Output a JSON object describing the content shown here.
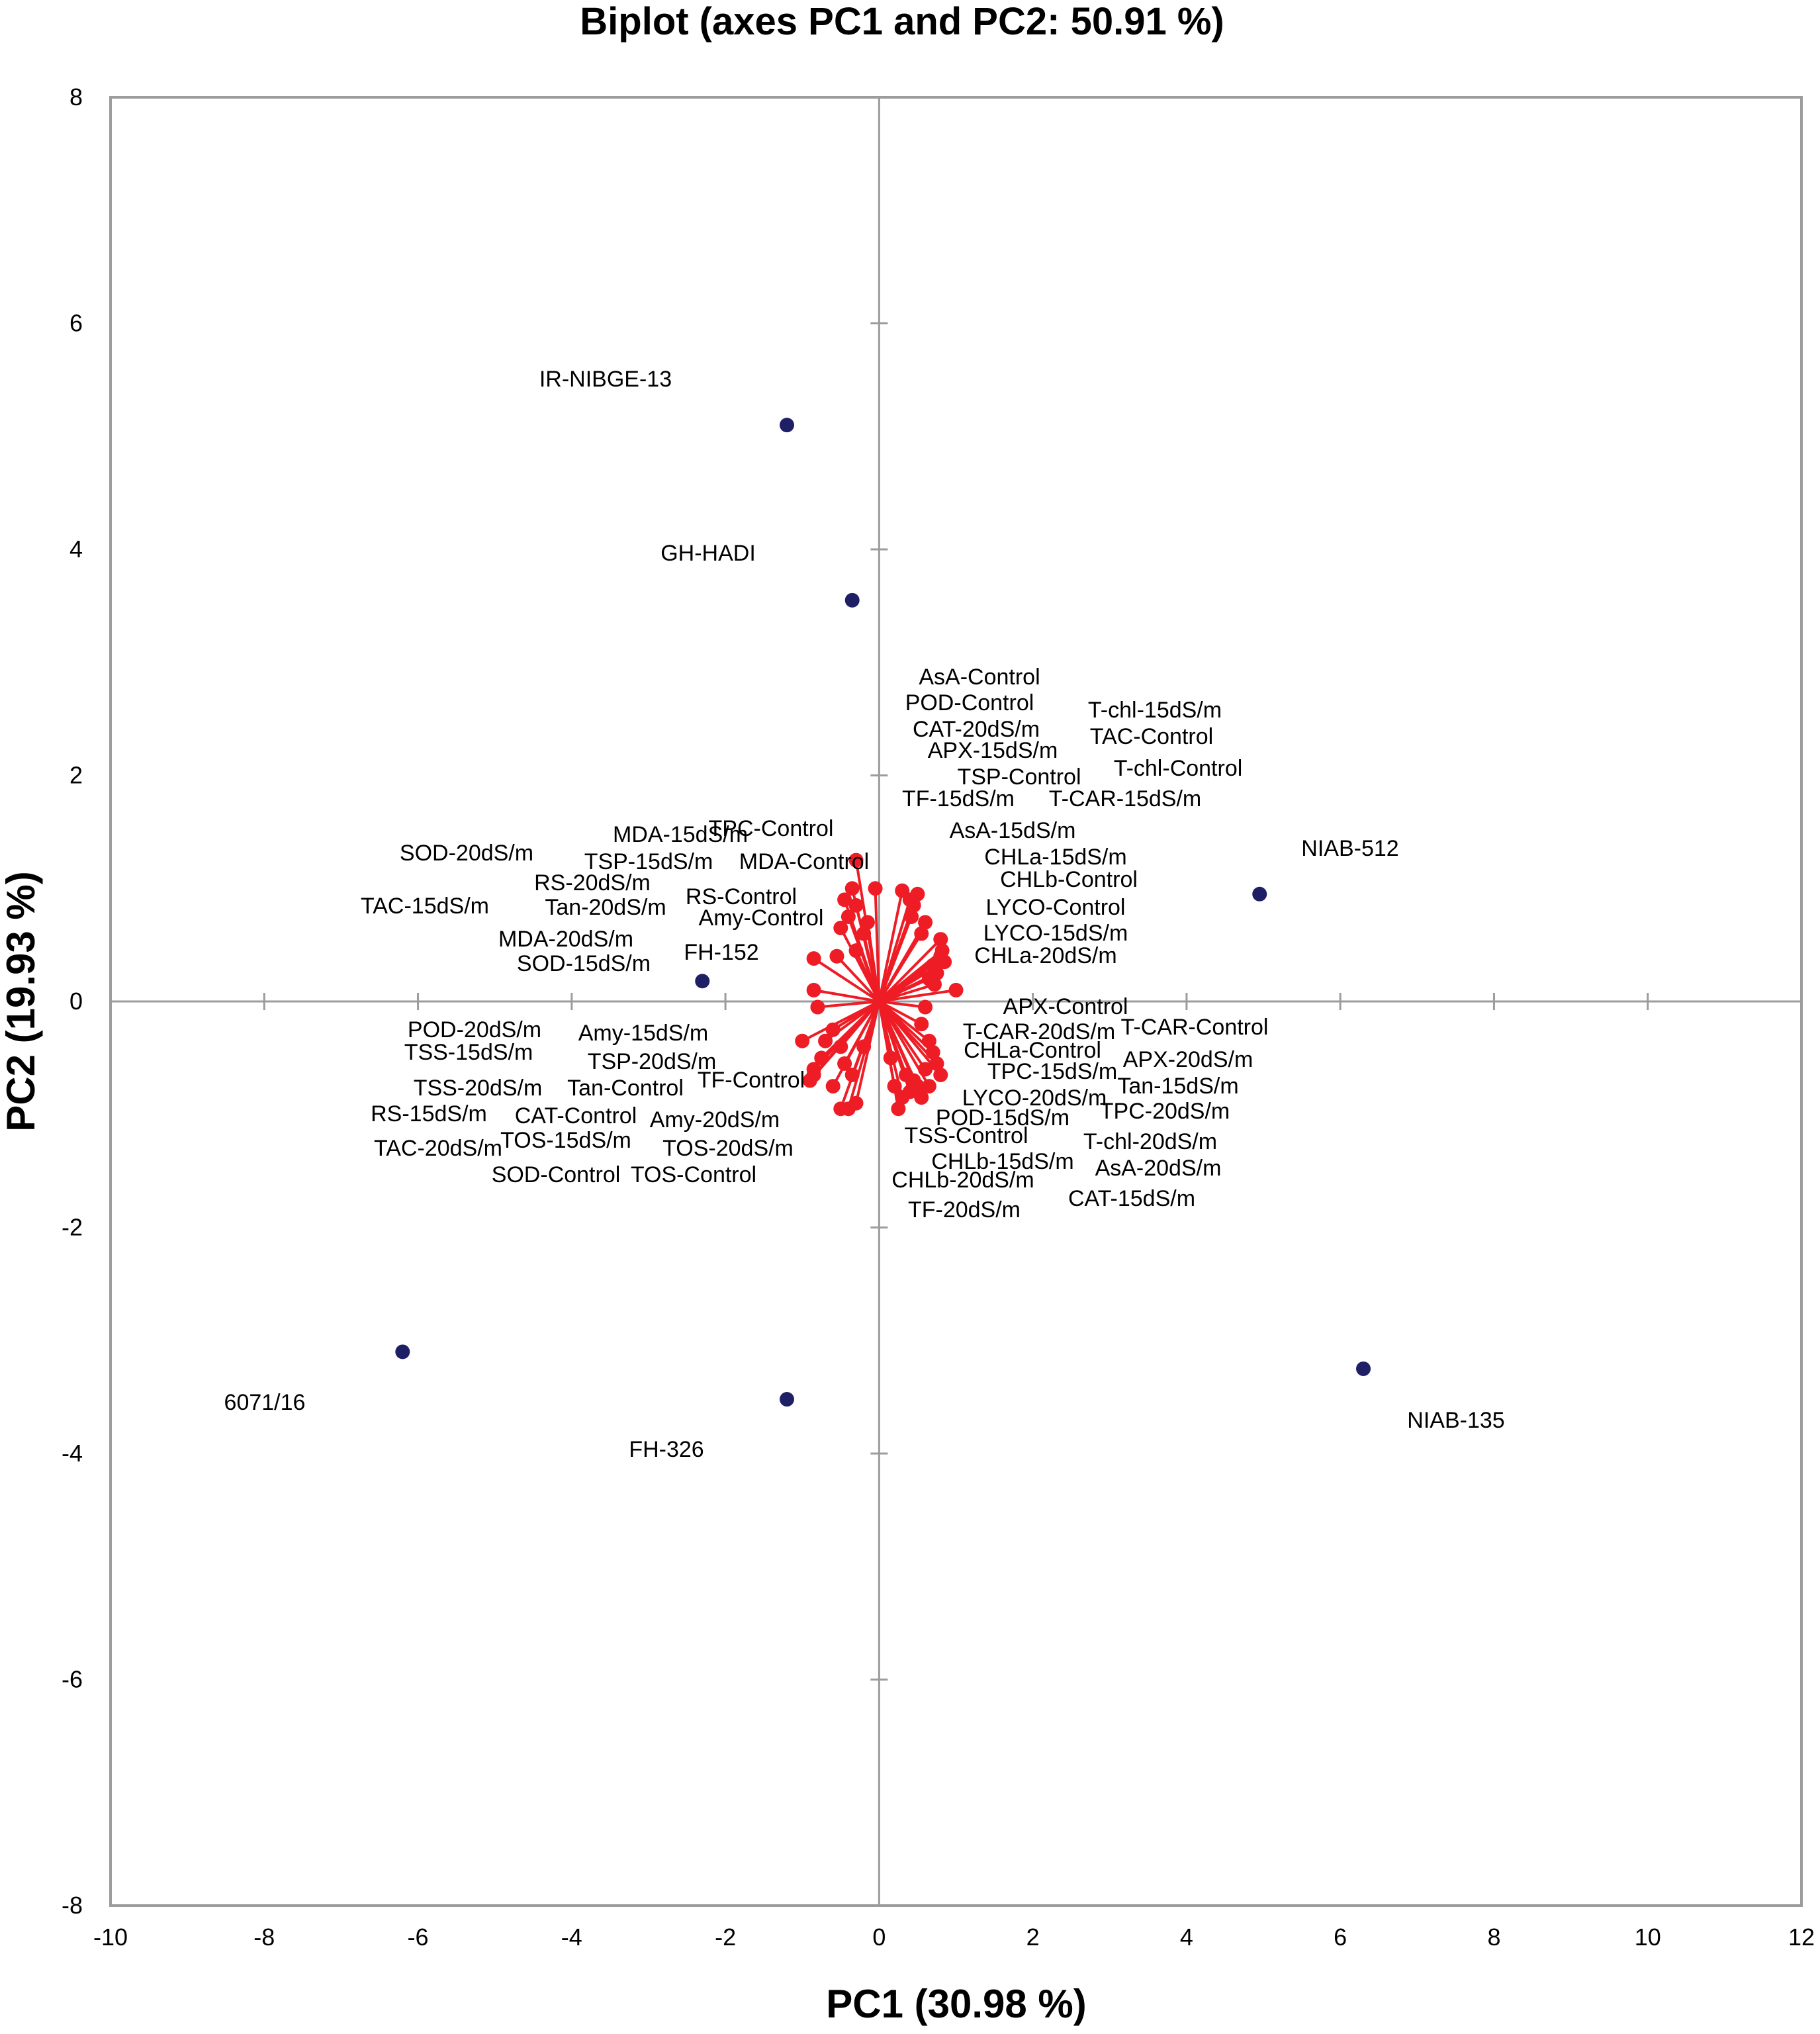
{
  "chart_data": {
    "type": "scatter",
    "title": "Biplot (axes PC1 and PC2: 50.91 %)",
    "xlabel": "PC1 (30.98 %)",
    "ylabel": "PC2 (19.93 %)",
    "xlim": [
      -10,
      12
    ],
    "ylim": [
      -8,
      8
    ],
    "xticks": [
      -10,
      -8,
      -6,
      -4,
      -2,
      0,
      2,
      4,
      6,
      8,
      10,
      12
    ],
    "yticks": [
      -8,
      -6,
      -4,
      -2,
      0,
      2,
      4,
      6,
      8
    ],
    "grid": false,
    "colors": {
      "observations": "#1f1f66",
      "variables": "#ee1c25",
      "axes": "#9c9c9c",
      "frame": "#9c9c9c"
    },
    "observations": [
      {
        "label": "IR-NIBGE-13",
        "x": -1.2,
        "y": 5.1
      },
      {
        "label": "GH-HADI",
        "x": -0.35,
        "y": 3.55
      },
      {
        "label": "NIAB-512",
        "x": 4.95,
        "y": 0.95
      },
      {
        "label": "FH-152",
        "x": -2.3,
        "y": 0.18
      },
      {
        "label": "6071/16",
        "x": -6.2,
        "y": -3.1
      },
      {
        "label": "FH-326",
        "x": -1.2,
        "y": -3.52
      },
      {
        "label": "NIAB-135",
        "x": 6.3,
        "y": -3.25
      }
    ],
    "variables": [
      {
        "label": "AsA-Control",
        "x": 0.5,
        "y": 0.95
      },
      {
        "label": "POD-Control",
        "x": 0.3,
        "y": 0.98
      },
      {
        "label": "CAT-20dS/m",
        "x": 0.4,
        "y": 0.9
      },
      {
        "label": "APX-15dS/m",
        "x": 0.45,
        "y": 0.85
      },
      {
        "label": "T-chl-15dS/m",
        "x": 0.8,
        "y": 0.55
      },
      {
        "label": "TAC-Control",
        "x": 0.82,
        "y": 0.45
      },
      {
        "label": "TSP-Control",
        "x": 0.6,
        "y": 0.7
      },
      {
        "label": "T-chl-Control",
        "x": 0.85,
        "y": 0.35
      },
      {
        "label": "TF-15dS/m",
        "x": 0.42,
        "y": 0.75
      },
      {
        "label": "T-CAR-15dS/m",
        "x": 0.8,
        "y": 0.4
      },
      {
        "label": "AsA-15dS/m",
        "x": 0.55,
        "y": 0.6
      },
      {
        "label": "CHLa-15dS/m",
        "x": 0.7,
        "y": 0.32
      },
      {
        "label": "CHLb-Control",
        "x": 0.75,
        "y": 0.25
      },
      {
        "label": "LYCO-Control",
        "x": 0.65,
        "y": 0.2
      },
      {
        "label": "LYCO-15dS/m",
        "x": 0.72,
        "y": 0.15
      },
      {
        "label": "CHLa-20dS/m",
        "x": 1.0,
        "y": 0.1
      },
      {
        "label": "TPC-Control",
        "x": -0.3,
        "y": 1.25
      },
      {
        "label": "MDA-Control",
        "x": -0.05,
        "y": 1.0
      },
      {
        "label": "MDA-15dS/m",
        "x": -0.35,
        "y": 1.0
      },
      {
        "label": "SOD-20dS/m",
        "x": -0.45,
        "y": 0.9
      },
      {
        "label": "TSP-15dS/m",
        "x": -0.3,
        "y": 0.85
      },
      {
        "label": "RS-20dS/m",
        "x": -0.4,
        "y": 0.75
      },
      {
        "label": "RS-Control",
        "x": -0.15,
        "y": 0.7
      },
      {
        "label": "TAC-15dS/m",
        "x": -0.5,
        "y": 0.65
      },
      {
        "label": "Tan-20dS/m",
        "x": -0.2,
        "y": 0.6
      },
      {
        "label": "Amy-Control",
        "x": -0.3,
        "y": 0.45
      },
      {
        "label": "MDA-20dS/m",
        "x": -0.55,
        "y": 0.4
      },
      {
        "label": "SOD-15dS/m",
        "x": -0.85,
        "y": 0.38
      },
      {
        "label": "APX-Control",
        "x": 0.6,
        "y": -0.05
      },
      {
        "label": "T-CAR-20dS/m",
        "x": 0.55,
        "y": -0.2
      },
      {
        "label": "T-CAR-Control",
        "x": 0.65,
        "y": -0.35
      },
      {
        "label": "CHLa-Control",
        "x": 0.7,
        "y": -0.45
      },
      {
        "label": "APX-20dS/m",
        "x": 0.8,
        "y": -0.65
      },
      {
        "label": "TPC-15dS/m",
        "x": 0.6,
        "y": -0.6
      },
      {
        "label": "Tan-15dS/m",
        "x": 0.75,
        "y": -0.55
      },
      {
        "label": "LYCO-20dS/m",
        "x": 0.5,
        "y": -0.75
      },
      {
        "label": "TPC-20dS/m",
        "x": 0.4,
        "y": -0.8
      },
      {
        "label": "POD-15dS/m",
        "x": 0.45,
        "y": -0.7
      },
      {
        "label": "TSS-Control",
        "x": 0.3,
        "y": -0.85
      },
      {
        "label": "T-chl-20dS/m",
        "x": 0.55,
        "y": -0.85
      },
      {
        "label": "CHLb-15dS/m",
        "x": 0.35,
        "y": -0.65
      },
      {
        "label": "AsA-20dS/m",
        "x": 0.25,
        "y": -0.95
      },
      {
        "label": "CHLb-20dS/m",
        "x": 0.2,
        "y": -0.75
      },
      {
        "label": "CAT-15dS/m",
        "x": 0.65,
        "y": -0.75
      },
      {
        "label": "TF-20dS/m",
        "x": 0.15,
        "y": -0.5
      },
      {
        "label": "POD-20dS/m",
        "x": -0.85,
        "y": -0.65
      },
      {
        "label": "Amy-15dS/m",
        "x": -0.6,
        "y": -0.25
      },
      {
        "label": "TSS-15dS/m",
        "x": -1.0,
        "y": -0.35
      },
      {
        "label": "TSP-20dS/m",
        "x": -0.5,
        "y": -0.4
      },
      {
        "label": "TSS-20dS/m",
        "x": -0.75,
        "y": -0.5
      },
      {
        "label": "Tan-Control",
        "x": -0.45,
        "y": -0.55
      },
      {
        "label": "TF-Control",
        "x": -0.2,
        "y": -0.4
      },
      {
        "label": "RS-15dS/m",
        "x": -0.9,
        "y": -0.7
      },
      {
        "label": "CAT-Control",
        "x": -0.6,
        "y": -0.75
      },
      {
        "label": "Amy-20dS/m",
        "x": -0.35,
        "y": -0.65
      },
      {
        "label": "TAC-20dS/m",
        "x": -0.85,
        "y": -0.6
      },
      {
        "label": "TOS-15dS/m",
        "x": -0.5,
        "y": -0.95
      },
      {
        "label": "TOS-20dS/m",
        "x": -0.3,
        "y": -0.9
      },
      {
        "label": "SOD-Control",
        "x": -0.7,
        "y": -0.35
      },
      {
        "label": "TOS-Control",
        "x": -0.4,
        "y": -0.95
      },
      {
        "label": "",
        "x": -0.85,
        "y": 0.1
      },
      {
        "label": "",
        "x": -0.8,
        "y": -0.05
      }
    ]
  }
}
